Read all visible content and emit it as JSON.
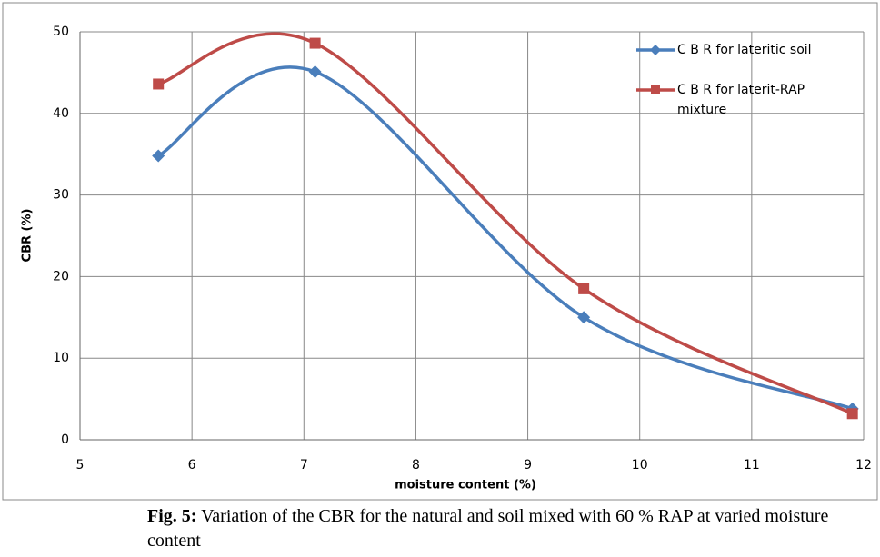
{
  "chart_data": {
    "type": "line",
    "y_label": "CBR (%)",
    "x_label": "moisture content (%)",
    "x": [
      5.7,
      7.1,
      9.5,
      11.9
    ],
    "series": [
      {
        "name": "C B R for lateritic soil",
        "color": "#4a7ebb",
        "marker": "diamond",
        "values": [
          34.8,
          45.1,
          15,
          3.8
        ]
      },
      {
        "name": "C B R for laterit-RAP mixture",
        "color": "#be4b48",
        "marker": "square",
        "values": [
          43.6,
          48.6,
          18.5,
          3.2
        ]
      }
    ],
    "xlim": [
      5,
      12
    ],
    "xticks": [
      5,
      6,
      7,
      8,
      9,
      10,
      11,
      12
    ],
    "ylim": [
      0,
      50
    ],
    "yticks": [
      0,
      10,
      20,
      30,
      40,
      50
    ],
    "grid": true,
    "smooth": true,
    "legend": "upper right"
  },
  "caption": {
    "label": "Fig. 5:",
    "text": "Variation of the CBR for the natural and soil mixed with 60 % RAP at varied moisture content"
  }
}
